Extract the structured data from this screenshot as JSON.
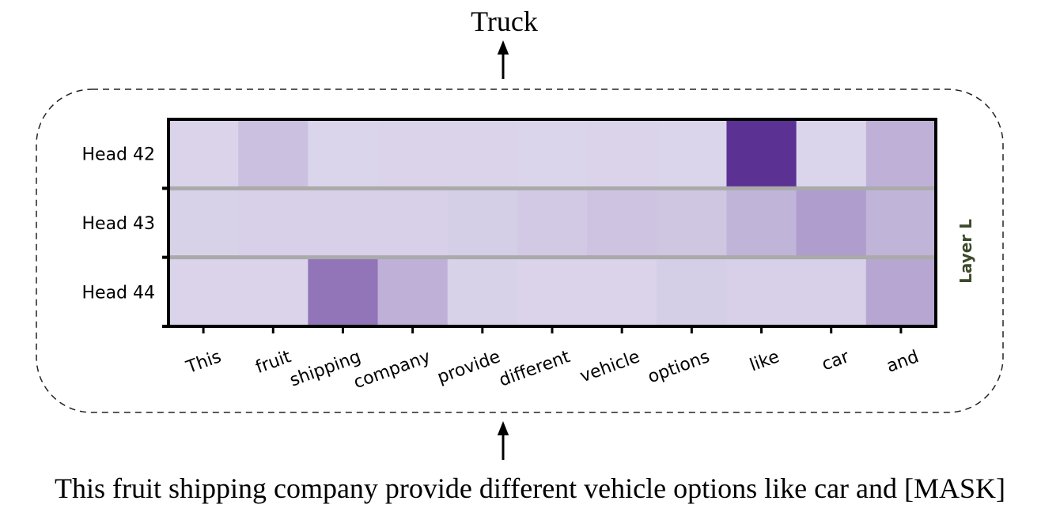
{
  "output_label": "Truck",
  "input_sentence": "This fruit shipping company provide different vehicle options like car and [MASK]",
  "layer_label": "Layer L",
  "chart_data": {
    "type": "heatmap",
    "rows": [
      "Head 42",
      "Head 43",
      "Head 44"
    ],
    "columns": [
      "This",
      "fruit",
      "shipping",
      "company",
      "provide",
      "different",
      "vehicle",
      "options",
      "like",
      "car",
      "and"
    ],
    "colormap": "Purples",
    "values": [
      [
        0.12,
        0.22,
        0.11,
        0.12,
        0.12,
        0.11,
        0.12,
        0.11,
        0.95,
        0.11,
        0.3
      ],
      [
        0.13,
        0.14,
        0.14,
        0.14,
        0.15,
        0.17,
        0.2,
        0.19,
        0.28,
        0.4,
        0.28
      ],
      [
        0.12,
        0.12,
        0.6,
        0.3,
        0.13,
        0.12,
        0.12,
        0.15,
        0.14,
        0.14,
        0.35
      ]
    ],
    "grid": false
  }
}
